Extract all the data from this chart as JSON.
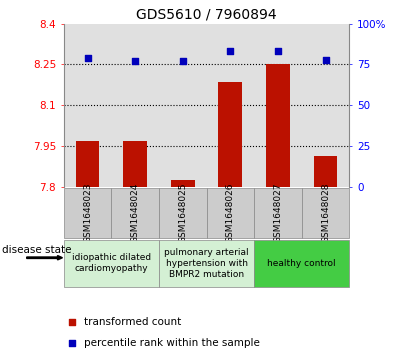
{
  "title": "GDS5610 / 7960894",
  "samples": [
    "GSM1648023",
    "GSM1648024",
    "GSM1648025",
    "GSM1648026",
    "GSM1648027",
    "GSM1648028"
  ],
  "bar_values": [
    7.967,
    7.97,
    7.825,
    8.185,
    8.25,
    7.915
  ],
  "scatter_values": [
    79,
    77,
    77,
    83,
    83,
    78
  ],
  "bar_color": "#bb1100",
  "scatter_color": "#0000bb",
  "ylim_left": [
    7.8,
    8.4
  ],
  "ylim_right": [
    0,
    100
  ],
  "yticks_left": [
    7.8,
    7.95,
    8.1,
    8.25,
    8.4
  ],
  "ytick_labels_left": [
    "7.8",
    "7.95",
    "8.1",
    "8.25",
    "8.4"
  ],
  "yticks_right": [
    0,
    25,
    50,
    75,
    100
  ],
  "ytick_labels_right": [
    "0",
    "25",
    "50",
    "75",
    "100%"
  ],
  "hlines": [
    8.25,
    8.1,
    7.95
  ],
  "group_ranges": [
    [
      0,
      1
    ],
    [
      2,
      3
    ],
    [
      4,
      5
    ]
  ],
  "group_labels": [
    "idiopathic dilated\ncardiomyopathy",
    "pulmonary arterial\nhypertension with\nBMPR2 mutation",
    "healthy control"
  ],
  "group_bg_colors": [
    "#d4f0d4",
    "#d4f0d4",
    "#44cc44"
  ],
  "legend_items": [
    {
      "label": "transformed count",
      "color": "#bb1100"
    },
    {
      "label": "percentile rank within the sample",
      "color": "#0000bb"
    }
  ],
  "disease_state_label": "disease state",
  "title_fontsize": 10,
  "tick_label_fontsize": 7.5,
  "sample_fontsize": 6.5,
  "group_fontsize": 6.5,
  "legend_fontsize": 7.5,
  "bar_width": 0.5,
  "sample_box_color": "#cccccc",
  "sample_box_edge": "#888888"
}
